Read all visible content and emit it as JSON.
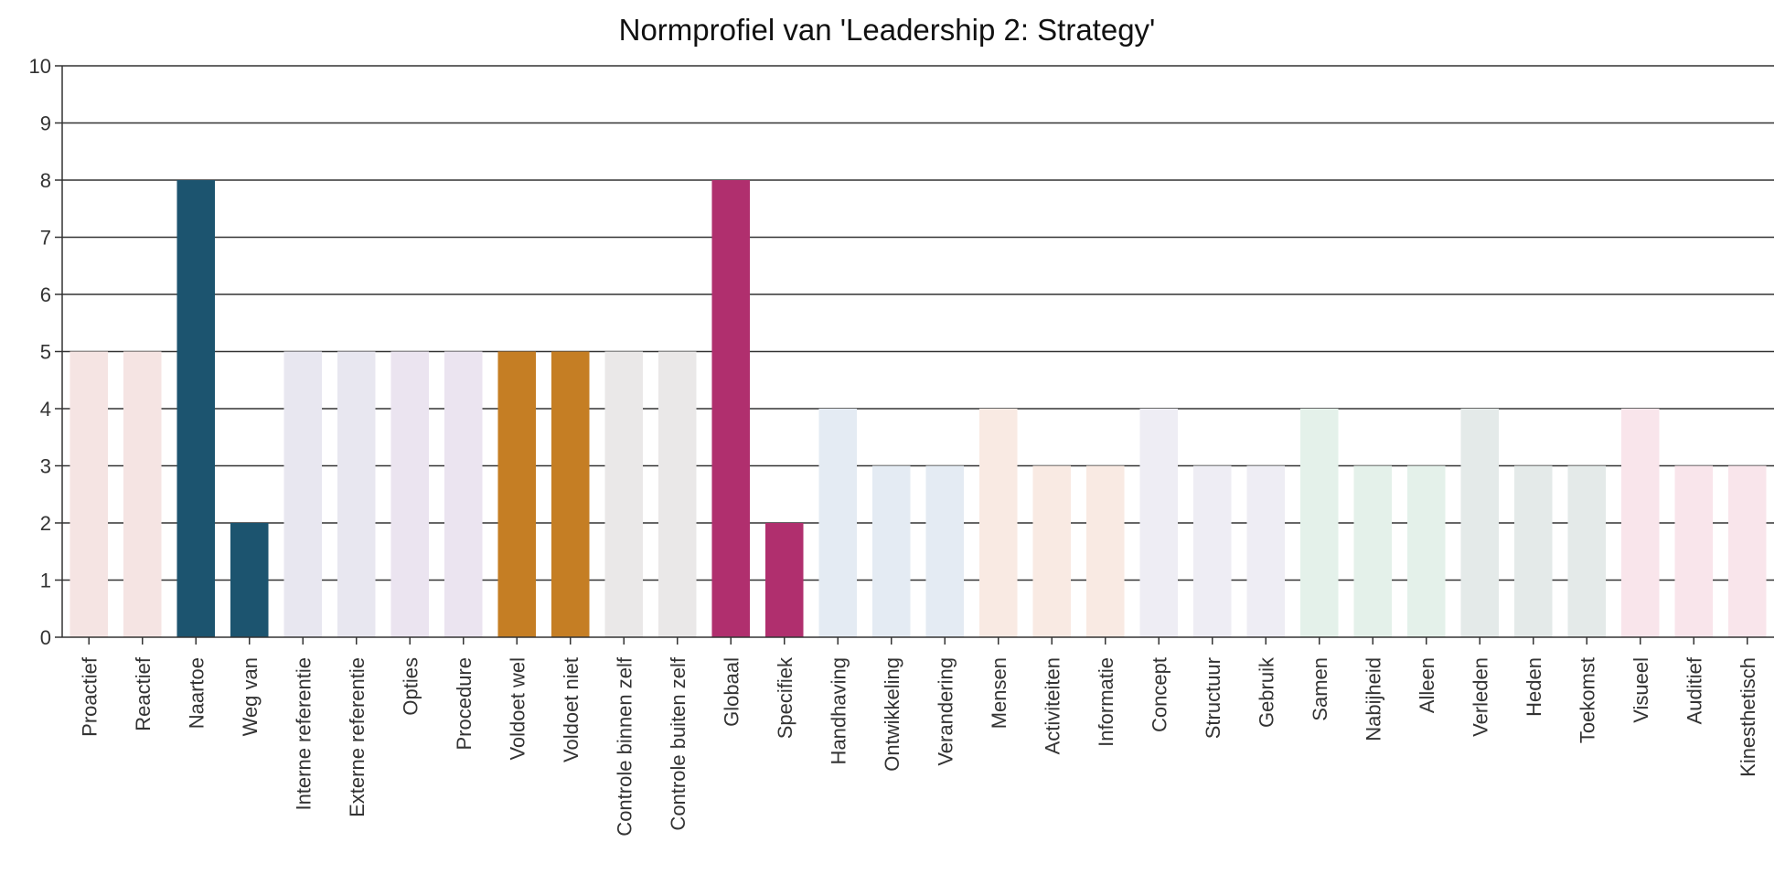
{
  "chart_data": {
    "type": "bar",
    "title": "Normprofiel van 'Leadership 2: Strategy'",
    "xlabel": "",
    "ylabel": "",
    "ylim": [
      0,
      10
    ],
    "yticks": [
      0,
      1,
      2,
      3,
      4,
      5,
      6,
      7,
      8,
      9,
      10
    ],
    "grid": true,
    "legend": "none",
    "categories": [
      "Proactief",
      "Reactief",
      "Naartoe",
      "Weg van",
      "Interne referentie",
      "Externe referentie",
      "Opties",
      "Procedure",
      "Voldoet wel",
      "Voldoet niet",
      "Controle binnen zelf",
      "Controle buiten zelf",
      "Globaal",
      "Specifiek",
      "Handhaving",
      "Ontwikkeling",
      "Verandering",
      "Mensen",
      "Activiteiten",
      "Informatie",
      "Concept",
      "Structuur",
      "Gebruik",
      "Samen",
      "Nabijheid",
      "Alleen",
      "Verleden",
      "Heden",
      "Toekomst",
      "Visueel",
      "Auditief",
      "Kinesthetisch"
    ],
    "values": [
      5,
      5,
      8,
      2,
      5,
      5,
      5,
      5,
      5,
      5,
      5,
      5,
      8,
      2,
      4,
      3,
      3,
      4,
      3,
      3,
      4,
      3,
      3,
      4,
      3,
      3,
      4,
      3,
      3,
      4,
      3,
      3
    ],
    "colors": [
      "#f5e4e3",
      "#f5e4e3",
      "#1c546f",
      "#1c546f",
      "#e8e7f0",
      "#e8e7f0",
      "#ebe4f0",
      "#ebe4f0",
      "#c57e24",
      "#c57e24",
      "#eae8e8",
      "#eae8e8",
      "#b02f6e",
      "#b02f6e",
      "#e4ebf3",
      "#e4ebf3",
      "#e4ebf3",
      "#f9eae3",
      "#f9eae3",
      "#f9eae3",
      "#eeedf4",
      "#eeedf4",
      "#eeedf4",
      "#e4f1ea",
      "#e4f1ea",
      "#e4f1ea",
      "#e4eae9",
      "#e4eae9",
      "#e4eae9",
      "#f9e5eb",
      "#f9e5eb",
      "#f9e5eb"
    ]
  }
}
